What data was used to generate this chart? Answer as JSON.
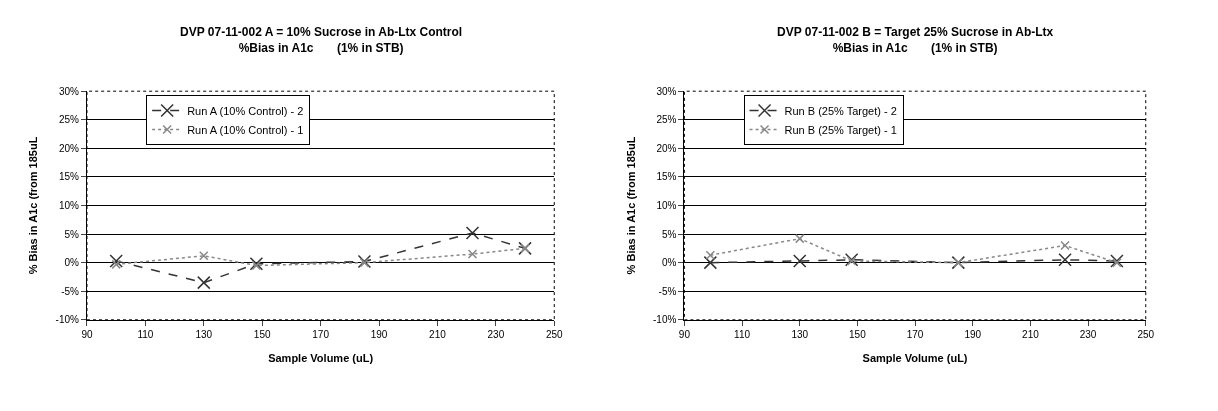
{
  "chart_data": [
    {
      "type": "line",
      "title": "DVP 07-11-002 A = 10% Sucrose in Ab-Ltx Control",
      "subtitle": "%Bias in A1c       (1% in STB)",
      "xlabel": "Sample Volume (uL)",
      "ylabel": "% Bias in A1c (from 185uL",
      "x": [
        100,
        130,
        148,
        185,
        222,
        240
      ],
      "series": [
        {
          "name": "Run A (10% Control) - 2",
          "color": "#333333",
          "line_style": "dashed",
          "values": [
            0.3,
            -3.5,
            -0.2,
            0.2,
            5.2,
            2.5
          ]
        },
        {
          "name": "Run A (10% Control) - 1",
          "color": "#888888",
          "line_style": "dotted",
          "values": [
            -0.3,
            1.2,
            -0.5,
            0,
            1.5,
            2.5
          ]
        }
      ],
      "xlim": [
        90,
        250
      ],
      "xticks": [
        90,
        110,
        130,
        150,
        170,
        190,
        210,
        230,
        250
      ],
      "ylim": [
        -10,
        30
      ],
      "yticks": [
        {
          "value": -10,
          "label": "-10%"
        },
        {
          "value": -5,
          "label": "-5%"
        },
        {
          "value": 0,
          "label": "0%"
        },
        {
          "value": 5,
          "label": "5%"
        },
        {
          "value": 10,
          "label": "10%"
        },
        {
          "value": 15,
          "label": "15%"
        },
        {
          "value": 20,
          "label": "20%"
        },
        {
          "value": 25,
          "label": "25%"
        },
        {
          "value": 30,
          "label": "30%"
        }
      ],
      "grid": "y",
      "legend": "top left",
      "marker": "cross"
    },
    {
      "type": "line",
      "title": "DVP 07-11-002 B = Target 25% Sucrose in Ab-Ltx",
      "subtitle": "%Bias in A1c       (1% in STB)",
      "xlabel": "Sample Volume (uL)",
      "ylabel": "% Bias in A1c (from 185uL",
      "x": [
        99,
        130,
        148,
        185,
        222,
        240
      ],
      "series": [
        {
          "name": "Run B (25% Target) - 2",
          "color": "#333333",
          "line_style": "dashed",
          "values": [
            0,
            0.3,
            0.5,
            0,
            0.5,
            0.3
          ]
        },
        {
          "name": "Run B (25% Target) - 1",
          "color": "#888888",
          "line_style": "dotted",
          "values": [
            1.3,
            4.2,
            0.3,
            0,
            3,
            0
          ]
        }
      ],
      "xlim": [
        90,
        250
      ],
      "xticks": [
        90,
        110,
        130,
        150,
        170,
        190,
        210,
        230,
        250
      ],
      "ylim": [
        -10,
        30
      ],
      "yticks": [
        {
          "value": -10,
          "label": "-10%"
        },
        {
          "value": -5,
          "label": "-5%"
        },
        {
          "value": 0,
          "label": "0%"
        },
        {
          "value": 5,
          "label": "5%"
        },
        {
          "value": 10,
          "label": "10%"
        },
        {
          "value": 15,
          "label": "15%"
        },
        {
          "value": 20,
          "label": "20%"
        },
        {
          "value": 25,
          "label": "25%"
        },
        {
          "value": 30,
          "label": "30%"
        }
      ],
      "grid": "y",
      "legend": "top left",
      "marker": "cross"
    }
  ]
}
